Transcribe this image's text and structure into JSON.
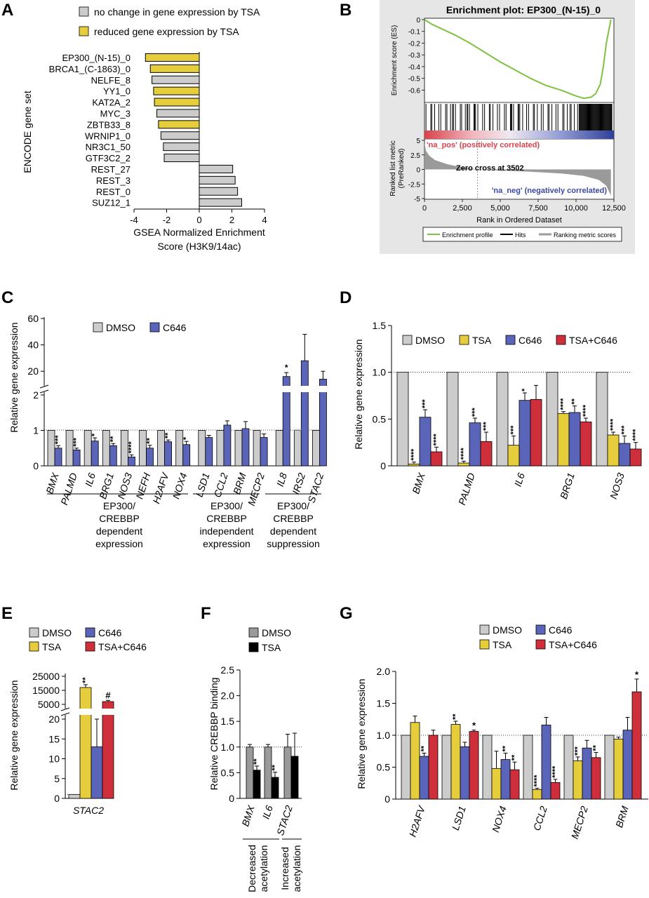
{
  "colors": {
    "gray": "#cccccc",
    "yellow": "#e5cd3c",
    "blue": "#5a64b8",
    "red": "#cf2f3b",
    "black": "#000000",
    "dark_gray": "#9a9a9a",
    "green": "#7fc242",
    "panel_bg": "#e6e6e6",
    "red_bar": "#d8424b",
    "blue_bar": "#2f3f9a"
  },
  "panels": {
    "A": {
      "letter": "A",
      "legend": [
        "no change in gene expression by TSA",
        "reduced gene expression by TSA"
      ],
      "ylabel": "ENCODE gene set",
      "xlabel_1": "GSEA Normalized Enrichment",
      "xlabel_2": "Score (H3K9/14ac)",
      "xlim": [
        -4,
        4
      ],
      "xticks": [
        "-4",
        "-2",
        "0",
        "2",
        "4"
      ]
    },
    "B": {
      "letter": "B",
      "title": "Enrichment plot: EP300_(N-15)_0",
      "ylabel_es": "Enrichment score (ES)",
      "es_ticks": [
        "0",
        "-0.1",
        "-0.2",
        "-0.3",
        "-0.4",
        "-0.5",
        "-0.6"
      ],
      "ylabel_metric_1": "Ranked list metric",
      "ylabel_metric_2": "(PreRanked)",
      "metric_ticks": [
        "5",
        "2.5",
        "0",
        "-2.5",
        "-5"
      ],
      "xlabel": "Rank in Ordered Dataset",
      "xticks": [
        "0",
        "2,500",
        "5,000",
        "7,500",
        "10,000",
        "12,500"
      ],
      "pos_label": "'na_pos' (positively correlated)",
      "neg_label": "'na_neg' (negatively correlated)",
      "zero_cross": "Zero cross at 3502",
      "legend": [
        "Enrichment profile",
        "Hits",
        "Ranking metric scores"
      ]
    },
    "C": {
      "letter": "C",
      "ylabel": "Relative gene expression",
      "legend": [
        "DMSO",
        "C646"
      ],
      "yticks_low": [
        "0",
        "1",
        "2"
      ],
      "yticks_high": [
        "20",
        "40",
        "60"
      ],
      "groups": [
        {
          "line1": "EP300/",
          "line2": "CREBBP",
          "line3": "dependent",
          "line4": "expression"
        },
        {
          "line1": "EP300/",
          "line2": "CREBBP",
          "line3": "independent",
          "line4": "expression"
        },
        {
          "line1": "EP300/",
          "line2": "CREBBP",
          "line3": "dependent",
          "line4": "suppression"
        }
      ]
    },
    "D": {
      "letter": "D",
      "ylabel": "Relative gene expression",
      "legend": [
        "DMSO",
        "TSA",
        "C646",
        "TSA+C646"
      ],
      "yticks": [
        "0",
        "0.5",
        "1.0",
        "1.5"
      ]
    },
    "E": {
      "letter": "E",
      "ylabel": "Relative gene expression",
      "legend": [
        "DMSO",
        "C646",
        "TSA",
        "TSA+C646"
      ],
      "yticks_low": [
        "0",
        "5",
        "10",
        "15",
        "20"
      ],
      "yticks_high": [
        "5000",
        "15000",
        "25000"
      ]
    },
    "F": {
      "letter": "F",
      "ylabel": "Relative CREBBP binding",
      "legend": [
        "DMSO",
        "TSA"
      ],
      "yticks": [
        "0",
        "0.5",
        "1.0",
        "1.5",
        "2.0",
        "2.5"
      ],
      "groups": [
        {
          "line1": "Decreased",
          "line2": "acetylation"
        },
        {
          "line1": "Increased",
          "line2": "acetylation"
        }
      ]
    },
    "G": {
      "letter": "G",
      "ylabel": "Relative gene expression",
      "legend": [
        "DMSO",
        "C646",
        "TSA",
        "TSA+C646"
      ],
      "yticks": [
        "0",
        "0.5",
        "1.0",
        "1.5",
        "2.0"
      ]
    }
  },
  "chart_data": [
    {
      "panel": "A",
      "type": "bar",
      "orientation": "horizontal",
      "categories": [
        "EP300_(N-15)_0",
        "BRCA1_(C-1863)_0",
        "NELFE_8",
        "YY1_0",
        "KAT2A_2",
        "MYC_3",
        "ZBTB33_8",
        "WRNIP1_0",
        "NR3C1_50",
        "GTF3C2_2",
        "REST_27",
        "REST_3",
        "REST_0",
        "SUZ12_1"
      ],
      "values": [
        -3.3,
        -3.0,
        -2.9,
        -2.8,
        -2.75,
        -2.6,
        -2.5,
        -2.35,
        -2.2,
        -2.15,
        2.05,
        2.2,
        2.35,
        2.6
      ],
      "tsa_reduced": [
        true,
        true,
        false,
        true,
        true,
        false,
        true,
        false,
        false,
        false,
        false,
        false,
        false,
        false
      ],
      "xlim": [
        -4,
        4
      ]
    },
    {
      "panel": "B",
      "type": "line",
      "rank": [
        0,
        500,
        1000,
        2000,
        3000,
        4000,
        5000,
        6000,
        7000,
        8000,
        9000,
        10000,
        10500,
        11000,
        11300,
        11600,
        11800,
        12000,
        12300
      ],
      "es": [
        0,
        -0.04,
        -0.07,
        -0.13,
        -0.2,
        -0.28,
        -0.36,
        -0.43,
        -0.5,
        -0.56,
        -0.6,
        -0.65,
        -0.67,
        -0.66,
        -0.63,
        -0.55,
        -0.4,
        -0.2,
        0
      ],
      "metric_rank": [
        0,
        100,
        300,
        700,
        1500,
        2500,
        3502,
        5000,
        7000,
        9000,
        10500,
        11500,
        12000,
        12300
      ],
      "metric": [
        4.5,
        3.2,
        2.4,
        1.6,
        0.9,
        0.35,
        0,
        -0.2,
        -0.4,
        -0.7,
        -1.1,
        -1.8,
        -2.8,
        -4.5
      ],
      "zero_cross": 3502,
      "xlim": [
        0,
        12500
      ],
      "ylim_es": [
        -0.7,
        0
      ],
      "ylim_metric": [
        -5,
        5
      ]
    },
    {
      "panel": "C",
      "type": "bar",
      "categories": [
        "BMX",
        "PALMD",
        "IL6",
        "BRG1",
        "NOS3",
        "NEFH",
        "H2AFV",
        "NOX4",
        "LSD1",
        "CCL2",
        "BRM",
        "MECP2",
        "IL8",
        "IRS2",
        "STAC2"
      ],
      "series": [
        {
          "name": "DMSO",
          "values": [
            1,
            1,
            1,
            1,
            1,
            1,
            1,
            1,
            1,
            1,
            1,
            1,
            1,
            1,
            1
          ]
        },
        {
          "name": "C646",
          "values": [
            0.5,
            0.45,
            0.7,
            0.57,
            0.25,
            0.5,
            0.68,
            0.6,
            0.8,
            1.15,
            1.05,
            0.8,
            16,
            28,
            14
          ]
        }
      ],
      "stars": [
        "***",
        "***",
        "*",
        "**",
        "****",
        "**",
        "**",
        "*",
        "",
        "",
        "",
        "",
        "*",
        "",
        ""
      ],
      "ylim": [
        0,
        60
      ]
    },
    {
      "panel": "D",
      "type": "bar",
      "categories": [
        "BMX",
        "PALMD",
        "IL6",
        "BRG1",
        "NOS3"
      ],
      "series": [
        {
          "name": "DMSO",
          "values": [
            1,
            1,
            1,
            1,
            1
          ]
        },
        {
          "name": "TSA",
          "values": [
            0.02,
            0.03,
            0.22,
            0.56,
            0.33
          ]
        },
        {
          "name": "C646",
          "values": [
            0.52,
            0.46,
            0.7,
            0.57,
            0.24
          ]
        },
        {
          "name": "TSA+C646",
          "values": [
            0.15,
            0.26,
            0.71,
            0.47,
            0.18
          ]
        }
      ],
      "stars": [
        [
          "",
          "****",
          "***",
          "****"
        ],
        [
          "",
          "****",
          "***",
          "***"
        ],
        [
          "",
          "***",
          "*",
          ""
        ],
        [
          "",
          "****",
          "**",
          "****"
        ],
        [
          "",
          "****",
          "***",
          "****"
        ]
      ],
      "ylim": [
        0,
        1.5
      ]
    },
    {
      "panel": "E",
      "type": "bar",
      "categories": [
        "STAC2"
      ],
      "series": [
        {
          "name": "DMSO",
          "values": [
            1
          ]
        },
        {
          "name": "TSA",
          "values": [
            17000
          ]
        },
        {
          "name": "C646",
          "values": [
            13
          ]
        },
        {
          "name": "TSA+C646",
          "values": [
            7000
          ]
        }
      ],
      "stars": [
        "",
        "**",
        "",
        "#"
      ],
      "ylim": [
        0,
        25000
      ]
    },
    {
      "panel": "F",
      "type": "bar",
      "categories": [
        "BMX",
        "IL6",
        "STAC2"
      ],
      "series": [
        {
          "name": "DMSO",
          "values": [
            1,
            1,
            1
          ]
        },
        {
          "name": "TSA",
          "values": [
            0.55,
            0.41,
            0.82
          ]
        }
      ],
      "stars": [
        "**",
        "**",
        ""
      ],
      "ylim": [
        0,
        2.5
      ]
    },
    {
      "panel": "G",
      "type": "bar",
      "categories": [
        "H2AFV",
        "LSD1",
        "NOX4",
        "CCL2",
        "MECP2",
        "BRM"
      ],
      "series": [
        {
          "name": "DMSO",
          "values": [
            1,
            1,
            1,
            1,
            1,
            1
          ]
        },
        {
          "name": "TSA",
          "values": [
            1.2,
            1.17,
            0.48,
            0.15,
            0.6,
            0.94
          ]
        },
        {
          "name": "C646",
          "values": [
            0.67,
            0.82,
            0.62,
            1.16,
            0.8,
            1.08
          ]
        },
        {
          "name": "TSA+C646",
          "values": [
            1.0,
            1.06,
            0.46,
            0.26,
            0.65,
            1.68
          ]
        }
      ],
      "stars": [
        [
          "",
          "",
          "**",
          ""
        ],
        [
          "",
          "**",
          "",
          "*"
        ],
        [
          "",
          "",
          "**",
          "**"
        ],
        [
          "",
          "****",
          "",
          "****"
        ],
        [
          "",
          "***",
          "",
          "**"
        ],
        [
          "",
          "",
          "",
          "*"
        ]
      ],
      "ylim": [
        0,
        2.0
      ]
    }
  ]
}
